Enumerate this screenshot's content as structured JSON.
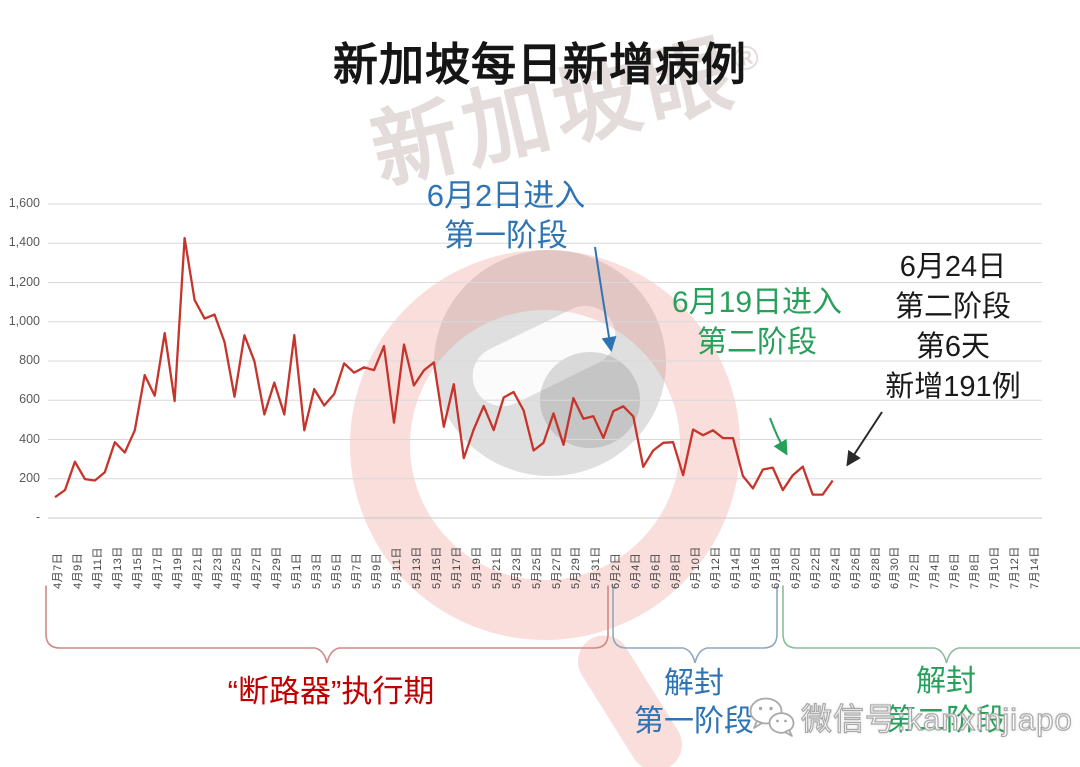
{
  "title": "新加坡每日新增病例",
  "watermark": {
    "brand_text": "新加坡眼",
    "registered_mark": "®",
    "wechat_label": "微信号:kanxinjiapo"
  },
  "annotations": {
    "phase1_start": {
      "line1": "6月2日进入",
      "line2": "第一阶段",
      "color": "#2E74B5"
    },
    "phase2_start": {
      "line1": "6月19日进入",
      "line2": "第二阶段",
      "color": "#27A05B"
    },
    "latest": {
      "line1": "6月24日",
      "line2": "第二阶段",
      "line3": "第6天",
      "line4": "新增191例",
      "color": "#1a1a1a"
    }
  },
  "periods": {
    "circuit_breaker": {
      "label": "“断路器”执行期",
      "color": "#C00000"
    },
    "reopen_phase1": {
      "line1": "解封",
      "line2": "第一阶段",
      "color": "#2E74B5"
    },
    "reopen_phase2": {
      "line1": "解封",
      "line2": "第二阶段",
      "color": "#27A05B"
    }
  },
  "chart_data": {
    "type": "line",
    "title": "新加坡每日新增病例",
    "series_name": "每日新增病例",
    "series_color": "#C5352C",
    "grid": true,
    "legend": "none",
    "ylim": [
      0,
      1600
    ],
    "y_ticks": [
      "1,600",
      "1,400",
      "1,200",
      "1,000",
      "800",
      "600",
      "400",
      "200",
      "-"
    ],
    "y_tick_values": [
      1600,
      1400,
      1200,
      1000,
      800,
      600,
      400,
      200,
      0
    ],
    "x_label_step_days": 2,
    "x_labels": [
      "4月7日",
      "4月9日",
      "4月11日",
      "4月13日",
      "4月15日",
      "4月17日",
      "4月19日",
      "4月21日",
      "4月23日",
      "4月25日",
      "4月27日",
      "4月29日",
      "5月1日",
      "5月3日",
      "5月5日",
      "5月7日",
      "5月9日",
      "5月11日",
      "5月13日",
      "5月15日",
      "5月17日",
      "5月19日",
      "5月21日",
      "5月23日",
      "5月25日",
      "5月27日",
      "5月29日",
      "5月31日",
      "6月2日",
      "6月4日",
      "6月6日",
      "6月8日",
      "6月10日",
      "6月12日",
      "6月14日",
      "6月16日",
      "6月18日",
      "6月20日",
      "6月22日",
      "6月24日",
      "6月26日",
      "6月28日",
      "6月30日",
      "7月2日",
      "7月4日",
      "7月6日",
      "7月8日",
      "7月10日",
      "7月12日",
      "7月14日"
    ],
    "data_start_label": "4月7日",
    "data_end_label": "6月24日",
    "values": [
      106,
      142,
      287,
      198,
      191,
      233,
      386,
      334,
      447,
      728,
      623,
      942,
      596,
      1426,
      1111,
      1016,
      1037,
      897,
      618,
      931,
      799,
      528,
      690,
      528,
      932,
      447,
      657,
      573,
      632,
      788,
      741,
      768,
      753,
      876,
      486,
      884,
      675,
      752,
      793,
      465,
      682,
      305,
      451,
      570,
      448,
      614,
      642,
      548,
      344,
      383,
      533,
      373,
      611,
      506,
      518,
      408,
      544,
      569,
      517,
      261,
      344,
      383,
      386,
      218,
      451,
      422,
      447,
      407,
      407,
      214,
      151,
      247,
      257,
      142,
      218,
      262,
      119,
      119,
      191
    ]
  }
}
